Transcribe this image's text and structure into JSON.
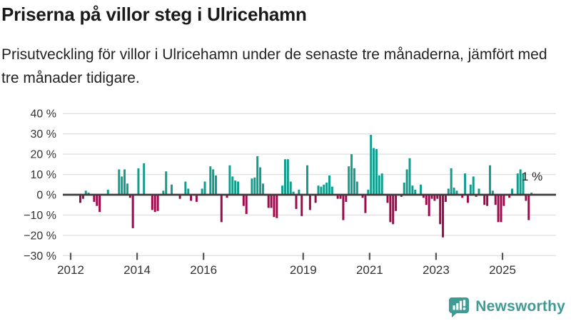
{
  "header": {
    "title": "Priserna på villor steg i Ulricehamn",
    "subtitle": "Prisutveckling för villor i Ulricehamn under de senaste tre månaderna, jämfört med tre månader tidigare."
  },
  "chart_data": {
    "type": "bar",
    "title": "Priserna på villor steg i Ulricehamn",
    "unit": "%",
    "frequency": "monthly",
    "start_month": "2012-04",
    "end_month": "2025-11",
    "grid": "horizontal",
    "legend_position": "none",
    "ylim": [
      -30,
      40
    ],
    "yticks": [
      {
        "value": 40,
        "label": "40 %"
      },
      {
        "value": 30,
        "label": "30 %"
      },
      {
        "value": 20,
        "label": "20 %"
      },
      {
        "value": 10,
        "label": "10 %"
      },
      {
        "value": 0,
        "label": "0 %"
      },
      {
        "value": -10,
        "label": "−10 %"
      },
      {
        "value": -20,
        "label": "−20 %"
      },
      {
        "value": -30,
        "label": "−30 %"
      }
    ],
    "xticks": [
      {
        "value": 2012,
        "label": "2012"
      },
      {
        "value": 2014,
        "label": "2014"
      },
      {
        "value": 2016,
        "label": "2016"
      },
      {
        "value": 2019,
        "label": "2019"
      },
      {
        "value": 2021,
        "label": "2021"
      },
      {
        "value": 2023,
        "label": "2023"
      },
      {
        "value": 2025,
        "label": "2025"
      }
    ],
    "values": [
      -4,
      -2,
      2,
      1,
      0,
      -3.5,
      -5.5,
      -8.5,
      0,
      0,
      2.5,
      0,
      0,
      0,
      12.5,
      9,
      12.5,
      5.5,
      -1.5,
      -16.5,
      0,
      13,
      0,
      15.5,
      0,
      0,
      -7.5,
      -8.5,
      -8,
      0,
      2,
      11.5,
      0,
      5,
      0,
      0,
      -2,
      0,
      6.5,
      3,
      -3,
      0,
      -3.5,
      0,
      3,
      6.5,
      0,
      14,
      12.5,
      9.5,
      0,
      -13.5,
      0,
      -1.5,
      14.5,
      9,
      7,
      6.5,
      0,
      -5.5,
      -9.5,
      0,
      8,
      8.5,
      19,
      13.5,
      5.5,
      0,
      -6.5,
      -6.5,
      -11,
      -11.5,
      0,
      4.5,
      17.5,
      17.5,
      6.5,
      1.5,
      -7,
      2.5,
      -10.5,
      0,
      14.5,
      -7.5,
      0,
      -4,
      4.5,
      4,
      5,
      6,
      9.5,
      4,
      0,
      -2,
      -2,
      -12.5,
      -3.5,
      14,
      20,
      13,
      6.5,
      0,
      -1.5,
      -9,
      2.5,
      29.5,
      23,
      22.5,
      9.5,
      10.5,
      0,
      -4,
      -13.5,
      -14.5,
      -8,
      0,
      -1,
      6,
      12.5,
      18,
      4.5,
      2.5,
      0,
      5,
      -1.5,
      -5,
      -10.5,
      -2,
      -3,
      -2,
      -14.5,
      -21,
      -3.5,
      3,
      13,
      3.5,
      2,
      0,
      -1.5,
      10.5,
      -4,
      5,
      9,
      -1,
      3,
      0,
      -5,
      -5.5,
      14.5,
      2,
      -5,
      -13.5,
      -13.5,
      -5.5,
      0,
      -1.5,
      3,
      0,
      10.5,
      12.5,
      10.5,
      -3,
      -12.5,
      1
    ],
    "annotation": {
      "text": "1 %",
      "refers_to": "latest value"
    },
    "colors": {
      "positive": "#149c8c",
      "negative": "#9e0a4d",
      "grid": "#e1e1e1",
      "zero_line": "#3c3c3c",
      "axis_text": "#333333"
    }
  },
  "footer": {
    "brand": "Newsworthy",
    "brand_color": "#3f9b95"
  }
}
